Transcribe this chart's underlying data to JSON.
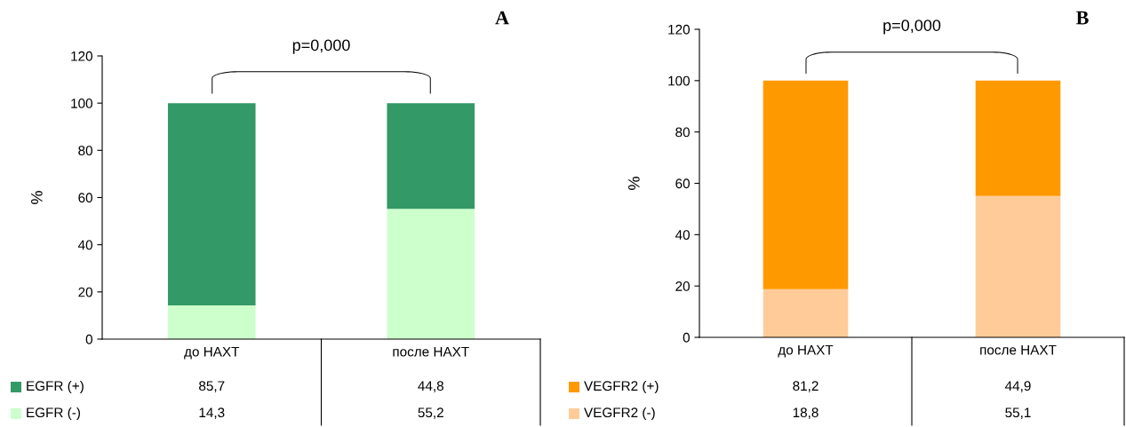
{
  "chart_data": [
    {
      "type": "bar",
      "title": "A",
      "ylabel": "%",
      "categories": [
        "до НАХТ",
        "после НАХТ"
      ],
      "stacked": true,
      "ylim": [
        0,
        120
      ],
      "yticks": [
        0,
        20,
        40,
        60,
        80,
        100,
        120
      ],
      "grid": false,
      "legend": "bottom",
      "annotations": [
        "p=0,000"
      ],
      "series": [
        {
          "name": "EGFR (-)",
          "color": "#ccffcc",
          "values": [
            14.3,
            55.2
          ],
          "value_labels": [
            "14,3",
            "55,2"
          ]
        },
        {
          "name": "EGFR (+)",
          "color": "#339966",
          "values": [
            85.7,
            44.8
          ],
          "value_labels": [
            "85,7",
            "44,8"
          ]
        }
      ]
    },
    {
      "type": "bar",
      "title": "B",
      "ylabel": "%",
      "categories": [
        "до НАХТ",
        "после НАХТ"
      ],
      "stacked": true,
      "ylim": [
        0,
        120
      ],
      "yticks": [
        0,
        20,
        40,
        60,
        80,
        100,
        120
      ],
      "grid": false,
      "legend": "bottom",
      "annotations": [
        "p=0,000"
      ],
      "series": [
        {
          "name": "VEGFR2 (-)",
          "color": "#ffcc99",
          "values": [
            18.8,
            55.1
          ],
          "value_labels": [
            "18,8",
            "55,1"
          ]
        },
        {
          "name": "VEGFR2 (+)",
          "color": "#ff9900",
          "values": [
            81.2,
            44.9
          ],
          "value_labels": [
            "81,2",
            "44,9"
          ]
        }
      ]
    }
  ]
}
